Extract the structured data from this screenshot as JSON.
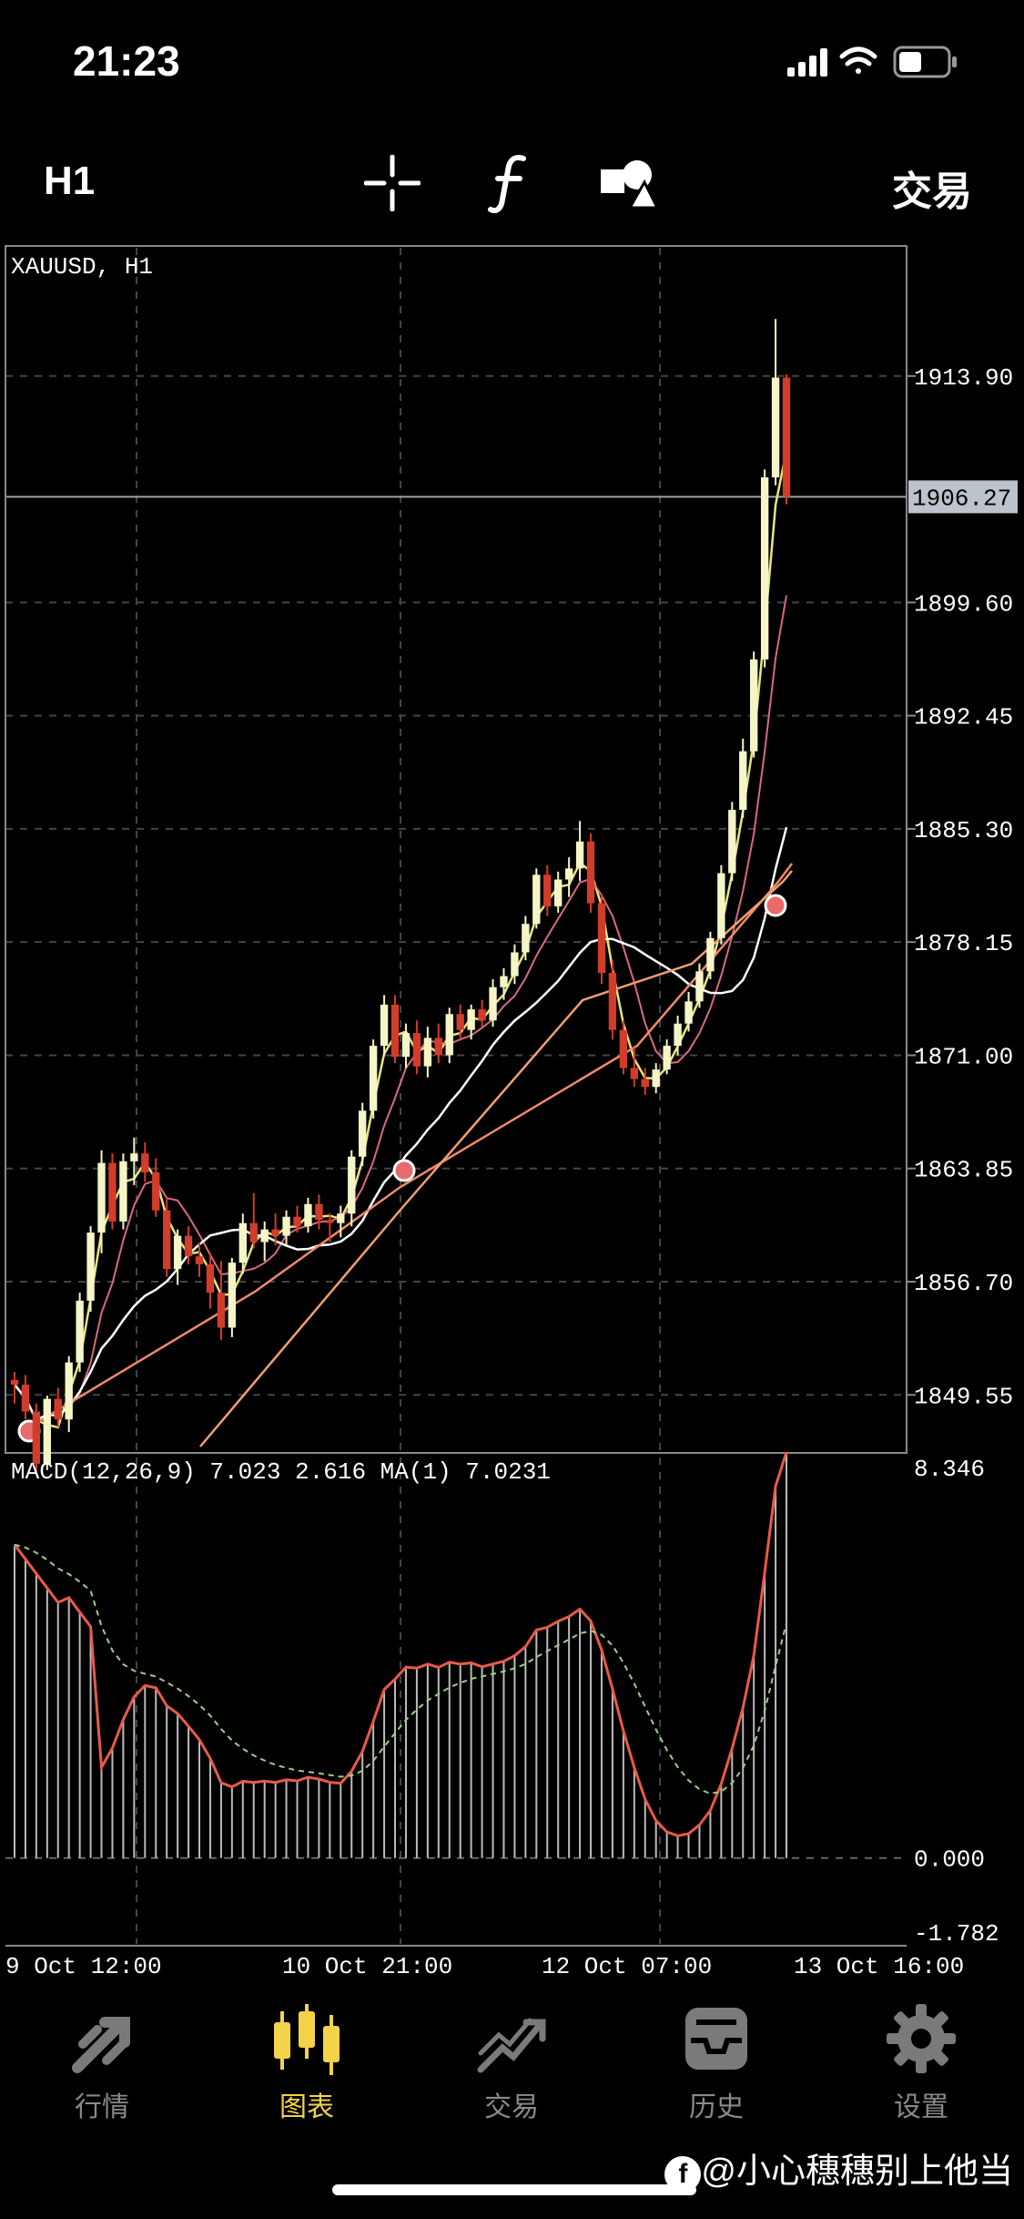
{
  "status": {
    "time": "21:23"
  },
  "toolbar": {
    "timeframe": "H1",
    "trade_label": "交易",
    "icons": [
      "crosshair-icon",
      "function-icon",
      "objects-icon"
    ]
  },
  "chart": {
    "symbol_label": "XAUUSD, H1",
    "current_price": "1906.27",
    "price_ticks": [
      "1913.90",
      "1899.60",
      "1892.45",
      "1885.30",
      "1878.15",
      "1871.00",
      "1863.85",
      "1856.70",
      "1849.55"
    ],
    "time_ticks": [
      "9 Oct 12:00",
      "10 Oct 21:00",
      "12 Oct 07:00",
      "13 Oct 16:00"
    ],
    "macd_label": "MACD(12,26,9) 7.023 2.616 MA(1) 7.0231",
    "macd_ticks": [
      "8.346",
      "0.000",
      "-1.782"
    ],
    "colors": {
      "bull": "#f5f5c8",
      "bear": "#d23c2a",
      "ma_fast": "#e8e87a",
      "ma_mid": "#d86a80",
      "ma_slow": "#ffffff",
      "ma_long1": "#f08a6a",
      "ma_long2": "#f0a070",
      "macd_line": "#e85a4a",
      "signal": "#9ccf8a"
    }
  },
  "chart_data": {
    "type": "candlestick",
    "title": "XAUUSD, H1",
    "ylim": [
      1846.0,
      1922.0
    ],
    "candles": [
      [
        1850.5,
        1851.0,
        1849.0,
        1850.2
      ],
      [
        1850.2,
        1850.8,
        1848.0,
        1848.5
      ],
      [
        1848.5,
        1849.0,
        1844.5,
        1845.2
      ],
      [
        1845.2,
        1849.5,
        1844.8,
        1849.3
      ],
      [
        1849.3,
        1850.0,
        1847.5,
        1848.0
      ],
      [
        1848.0,
        1852.0,
        1847.2,
        1851.6
      ],
      [
        1851.6,
        1856.0,
        1851.0,
        1855.5
      ],
      [
        1855.5,
        1860.2,
        1854.8,
        1859.8
      ],
      [
        1859.8,
        1865.0,
        1858.5,
        1864.2
      ],
      [
        1864.2,
        1864.8,
        1860.0,
        1860.5
      ],
      [
        1860.5,
        1864.8,
        1860.0,
        1864.3
      ],
      [
        1864.3,
        1865.8,
        1862.8,
        1864.8
      ],
      [
        1864.8,
        1865.5,
        1863.0,
        1863.6
      ],
      [
        1863.6,
        1864.5,
        1860.8,
        1861.2
      ],
      [
        1861.2,
        1862.0,
        1857.0,
        1857.5
      ],
      [
        1857.5,
        1860.0,
        1856.5,
        1859.6
      ],
      [
        1859.6,
        1860.2,
        1857.8,
        1858.3
      ],
      [
        1858.3,
        1859.2,
        1857.0,
        1857.8
      ],
      [
        1857.8,
        1858.5,
        1855.0,
        1856.0
      ],
      [
        1856.0,
        1858.0,
        1853.0,
        1853.8
      ],
      [
        1853.8,
        1858.2,
        1853.2,
        1857.9
      ],
      [
        1857.9,
        1861.0,
        1857.2,
        1860.4
      ],
      [
        1860.4,
        1862.3,
        1858.8,
        1859.2
      ],
      [
        1859.2,
        1860.5,
        1858.0,
        1860.0
      ],
      [
        1860.0,
        1861.0,
        1859.0,
        1859.6
      ],
      [
        1859.6,
        1861.2,
        1859.0,
        1860.8
      ],
      [
        1860.8,
        1861.5,
        1859.8,
        1860.2
      ],
      [
        1860.2,
        1862.0,
        1859.8,
        1861.6
      ],
      [
        1861.6,
        1862.2,
        1860.0,
        1860.6
      ],
      [
        1860.6,
        1861.0,
        1859.2,
        1860.4
      ],
      [
        1860.4,
        1861.5,
        1859.5,
        1861.0
      ],
      [
        1861.0,
        1865.0,
        1860.2,
        1864.6
      ],
      [
        1864.6,
        1868.0,
        1864.0,
        1867.5
      ],
      [
        1867.5,
        1872.0,
        1867.0,
        1871.6
      ],
      [
        1871.6,
        1874.8,
        1871.0,
        1874.2
      ],
      [
        1874.2,
        1874.8,
        1870.5,
        1870.9
      ],
      [
        1870.9,
        1873.0,
        1870.2,
        1872.4
      ],
      [
        1872.4,
        1873.2,
        1869.8,
        1870.3
      ],
      [
        1870.3,
        1872.8,
        1869.6,
        1872.1
      ],
      [
        1872.1,
        1873.0,
        1870.5,
        1871.0
      ],
      [
        1871.0,
        1874.0,
        1870.5,
        1873.6
      ],
      [
        1873.6,
        1874.2,
        1872.0,
        1872.6
      ],
      [
        1872.6,
        1874.2,
        1872.0,
        1873.9
      ],
      [
        1873.9,
        1874.5,
        1872.8,
        1873.2
      ],
      [
        1873.2,
        1875.8,
        1872.8,
        1875.3
      ],
      [
        1875.3,
        1876.5,
        1874.5,
        1876.0
      ],
      [
        1876.0,
        1878.0,
        1875.5,
        1877.5
      ],
      [
        1877.5,
        1879.8,
        1877.0,
        1879.3
      ],
      [
        1879.3,
        1882.8,
        1879.0,
        1882.4
      ],
      [
        1882.4,
        1883.0,
        1879.8,
        1880.4
      ],
      [
        1880.4,
        1882.6,
        1880.0,
        1882.1
      ],
      [
        1882.1,
        1883.5,
        1881.0,
        1882.8
      ],
      [
        1882.8,
        1885.8,
        1882.0,
        1884.5
      ],
      [
        1884.5,
        1885.0,
        1880.0,
        1880.6
      ],
      [
        1880.6,
        1881.2,
        1875.5,
        1876.2
      ],
      [
        1876.2,
        1877.0,
        1872.0,
        1872.6
      ],
      [
        1872.6,
        1873.2,
        1869.8,
        1870.2
      ],
      [
        1870.2,
        1871.5,
        1869.0,
        1869.5
      ],
      [
        1869.5,
        1870.2,
        1868.5,
        1869.0
      ],
      [
        1869.0,
        1870.5,
        1868.6,
        1870.1
      ],
      [
        1870.1,
        1872.0,
        1869.8,
        1871.6
      ],
      [
        1871.6,
        1873.5,
        1871.0,
        1873.0
      ],
      [
        1873.0,
        1875.0,
        1872.5,
        1874.4
      ],
      [
        1874.4,
        1876.8,
        1874.0,
        1876.3
      ],
      [
        1876.3,
        1878.8,
        1875.8,
        1878.4
      ],
      [
        1878.4,
        1883.0,
        1878.0,
        1882.5
      ],
      [
        1882.5,
        1887.0,
        1882.0,
        1886.5
      ],
      [
        1886.5,
        1891.0,
        1886.0,
        1890.2
      ],
      [
        1890.2,
        1896.5,
        1889.8,
        1896.0
      ],
      [
        1896.0,
        1908.0,
        1895.5,
        1907.5
      ],
      [
        1907.5,
        1917.5,
        1907.0,
        1913.8
      ],
      [
        1913.8,
        1914.0,
        1905.8,
        1906.27
      ]
    ]
  }
}
